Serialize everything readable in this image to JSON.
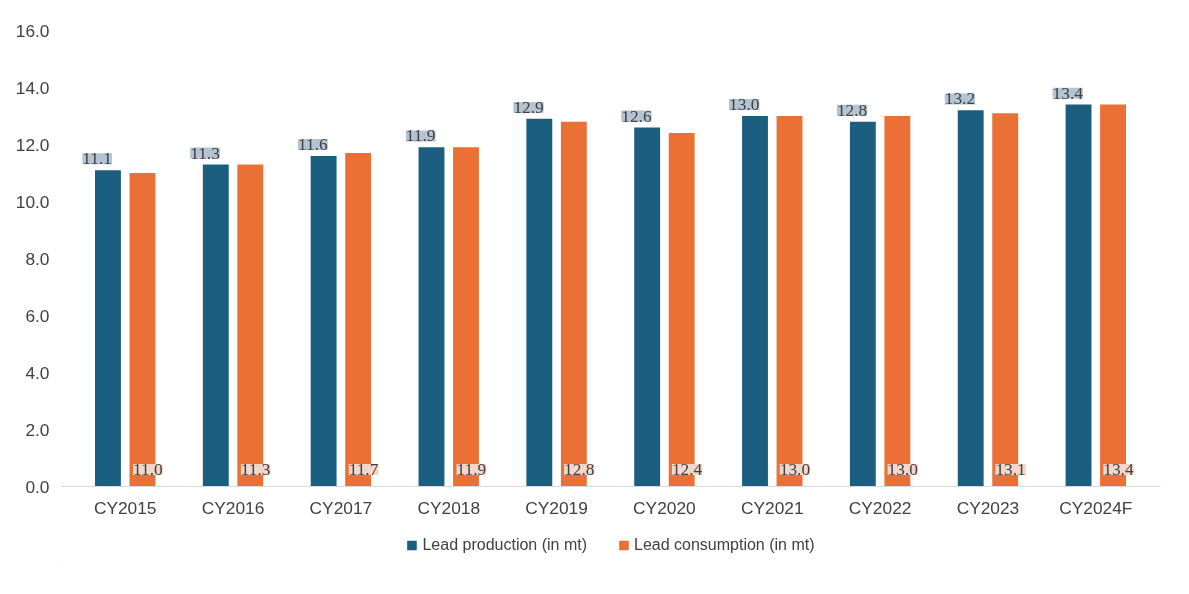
{
  "chart_data": {
    "type": "bar",
    "categories": [
      "CY2015",
      "CY2016",
      "CY2017",
      "CY2018",
      "CY2019",
      "CY2020",
      "CY2021",
      "CY2022",
      "CY2023",
      "CY2024F"
    ],
    "series": [
      {
        "name": "Lead production (in mt)",
        "color": "#1b5e80",
        "values": [
          11.1,
          11.3,
          11.6,
          11.9,
          12.9,
          12.6,
          13.0,
          12.8,
          13.2,
          13.4
        ],
        "value_labels": [
          "11.1",
          "11.3",
          "11.6",
          "11.9",
          "12.9",
          "12.6",
          "13.0",
          "12.8",
          "13.2",
          "13.4"
        ]
      },
      {
        "name": "Lead consumption (in mt)",
        "color": "#ea7035",
        "values": [
          11.0,
          11.3,
          11.7,
          11.9,
          12.8,
          12.4,
          13.0,
          13.0,
          13.1,
          13.4
        ],
        "value_labels": [
          "11.0",
          "11.3",
          "11.7",
          "11.9",
          "12.8",
          "12.4",
          "13.0",
          "13.0",
          "13.1",
          "13.4"
        ]
      }
    ],
    "ylim": [
      0,
      16
    ],
    "yticks": [
      {
        "value": 0,
        "label": "0.0"
      },
      {
        "value": 2,
        "label": "2.0"
      },
      {
        "value": 4,
        "label": "4.0"
      },
      {
        "value": 6,
        "label": "6.0"
      },
      {
        "value": 8,
        "label": "8.0"
      },
      {
        "value": 10,
        "label": "10.0"
      },
      {
        "value": 12,
        "label": "12.0"
      },
      {
        "value": 14,
        "label": "14.0"
      },
      {
        "value": 16,
        "label": "16.0"
      }
    ],
    "grid": false,
    "legend": "bottom"
  }
}
